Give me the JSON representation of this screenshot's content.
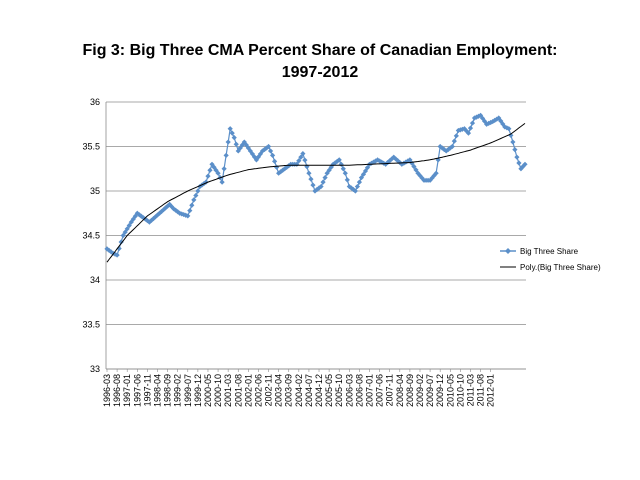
{
  "chart_data": {
    "type": "line",
    "title_line1": "Fig 3: Big Three CMA Percent Share of Canadian Employment:",
    "title_line2": "1997-2012",
    "xlabel": "",
    "ylabel": "",
    "ylim": [
      33,
      36
    ],
    "yticks": [
      "33",
      "33.5",
      "34",
      "34.5",
      "35",
      "35.5",
      "36"
    ],
    "grid": true,
    "legend_position": "right",
    "x_tick_labels": [
      "1996-03",
      "1996-08",
      "1997-01",
      "1997-06",
      "1997-11",
      "1998-04",
      "1998-09",
      "1999-02",
      "1999-07",
      "1999-12",
      "2000-05",
      "2000-10",
      "2001-03",
      "2001-08",
      "2002-01",
      "2002-06",
      "2002-11",
      "2003-04",
      "2003-09",
      "2004-02",
      "2004-07",
      "2004-12",
      "2005-05",
      "2005-10",
      "2006-03",
      "2006-08",
      "2007-01",
      "2007-06",
      "2007-11",
      "2008-04",
      "2008-09",
      "2009-02",
      "2009-07",
      "2009-12",
      "2010-05",
      "2010-10",
      "2011-03",
      "2011-08",
      "2012-01"
    ],
    "series": [
      {
        "name": "Big Three Share",
        "color": "#5b8fc9",
        "marker": "diamond",
        "anchors": [
          [
            0,
            34.35
          ],
          [
            3,
            34.3
          ],
          [
            5,
            34.28
          ],
          [
            8,
            34.5
          ],
          [
            12,
            34.65
          ],
          [
            15,
            34.75
          ],
          [
            18,
            34.7
          ],
          [
            21,
            34.65
          ],
          [
            26,
            34.75
          ],
          [
            31,
            34.85
          ],
          [
            33,
            34.8
          ],
          [
            36,
            34.75
          ],
          [
            40,
            34.72
          ],
          [
            43,
            34.9
          ],
          [
            46,
            35.05
          ],
          [
            49,
            35.1
          ],
          [
            52,
            35.3
          ],
          [
            55,
            35.2
          ],
          [
            57,
            35.1
          ],
          [
            59,
            35.4
          ],
          [
            61,
            35.7
          ],
          [
            63,
            35.6
          ],
          [
            65,
            35.45
          ],
          [
            68,
            35.55
          ],
          [
            71,
            35.45
          ],
          [
            74,
            35.35
          ],
          [
            77,
            35.45
          ],
          [
            80,
            35.5
          ],
          [
            82,
            35.4
          ],
          [
            85,
            35.2
          ],
          [
            88,
            35.25
          ],
          [
            91,
            35.3
          ],
          [
            94,
            35.3
          ],
          [
            97,
            35.42
          ],
          [
            100,
            35.2
          ],
          [
            103,
            35.0
          ],
          [
            106,
            35.05
          ],
          [
            109,
            35.2
          ],
          [
            112,
            35.3
          ],
          [
            115,
            35.35
          ],
          [
            118,
            35.2
          ],
          [
            120,
            35.05
          ],
          [
            123,
            35.0
          ],
          [
            126,
            35.15
          ],
          [
            130,
            35.3
          ],
          [
            134,
            35.35
          ],
          [
            138,
            35.3
          ],
          [
            142,
            35.38
          ],
          [
            146,
            35.3
          ],
          [
            150,
            35.35
          ],
          [
            154,
            35.2
          ],
          [
            157,
            35.12
          ],
          [
            160,
            35.12
          ],
          [
            163,
            35.2
          ],
          [
            165,
            35.5
          ],
          [
            168,
            35.45
          ],
          [
            171,
            35.5
          ],
          [
            174,
            35.68
          ],
          [
            177,
            35.7
          ],
          [
            179,
            35.65
          ],
          [
            182,
            35.82
          ],
          [
            185,
            35.85
          ],
          [
            188,
            35.75
          ],
          [
            191,
            35.78
          ],
          [
            194,
            35.82
          ],
          [
            197,
            35.72
          ],
          [
            199,
            35.7
          ],
          [
            201,
            35.55
          ],
          [
            203,
            35.38
          ],
          [
            205,
            35.25
          ],
          [
            207,
            35.3
          ]
        ]
      },
      {
        "name": "Poly.(Big Three Share)",
        "color": "#000000",
        "anchors": [
          [
            0,
            34.2
          ],
          [
            10,
            34.5
          ],
          [
            20,
            34.72
          ],
          [
            30,
            34.88
          ],
          [
            40,
            35.0
          ],
          [
            50,
            35.1
          ],
          [
            60,
            35.18
          ],
          [
            70,
            35.24
          ],
          [
            80,
            35.27
          ],
          [
            90,
            35.29
          ],
          [
            100,
            35.29
          ],
          [
            110,
            35.29
          ],
          [
            120,
            35.29
          ],
          [
            130,
            35.3
          ],
          [
            140,
            35.31
          ],
          [
            150,
            35.32
          ],
          [
            160,
            35.35
          ],
          [
            170,
            35.4
          ],
          [
            180,
            35.46
          ],
          [
            190,
            35.54
          ],
          [
            200,
            35.64
          ],
          [
            207,
            35.76
          ]
        ]
      }
    ],
    "num_points": 208
  }
}
